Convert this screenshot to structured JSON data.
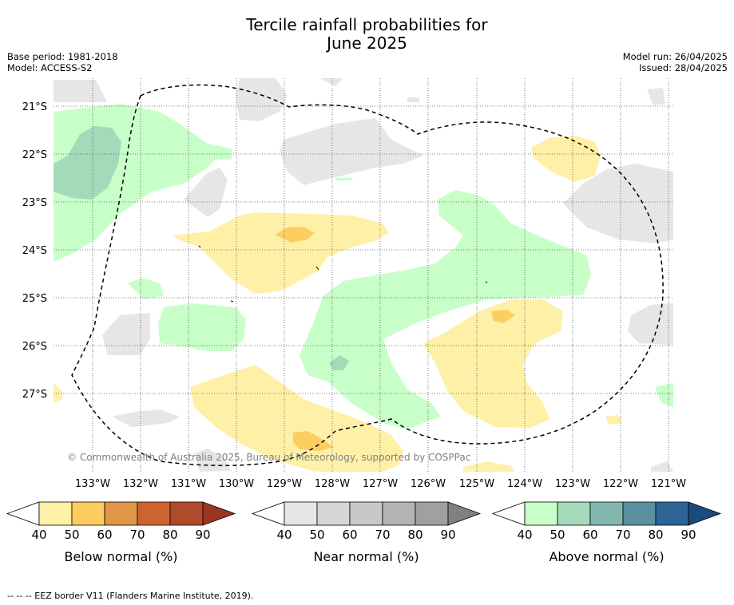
{
  "title_line1": "Tercile rainfall probabilities for",
  "title_line2": "June 2025",
  "base_period": "Base period: 1981-2018",
  "model": "Model: ACCESS-S2",
  "model_run": "Model run: 26/04/2025",
  "issued": "Issued: 28/04/2025",
  "copyright": "© Commonwealth of Australia 2025, Bureau of Meteorology, supported by COSPPac",
  "lat_labels": [
    "21°S",
    "22°S",
    "23°S",
    "24°S",
    "25°S",
    "26°S",
    "27°S"
  ],
  "lon_labels": [
    "133°W",
    "132°W",
    "131°W",
    "130°W",
    "129°W",
    "128°W",
    "127°W",
    "126°W",
    "125°W",
    "124°W",
    "123°W",
    "122°W",
    "121°W"
  ],
  "colorbars": [
    {
      "label": "Below normal (%)",
      "ticks": [
        "40",
        "50",
        "60",
        "70",
        "80",
        "90"
      ],
      "colors": [
        "#ffffff",
        "#fff0a8",
        "#fdcd62",
        "#e09646",
        "#cd6430",
        "#b04b2a",
        "#983621"
      ]
    },
    {
      "label": "Near normal (%)",
      "ticks": [
        "40",
        "50",
        "60",
        "70",
        "80",
        "90"
      ],
      "colors": [
        "#ffffff",
        "#e6e6e6",
        "#d6d6d6",
        "#c8c8c8",
        "#b4b4b4",
        "#a0a0a0",
        "#808080"
      ]
    },
    {
      "label": "Above normal (%)",
      "ticks": [
        "40",
        "50",
        "60",
        "70",
        "80",
        "90"
      ],
      "colors": [
        "#ffffff",
        "#c8ffc8",
        "#a4d9b9",
        "#82b8b0",
        "#5a91a0",
        "#2d6496",
        "#1a4b7c"
      ]
    }
  ],
  "footer": "--  --  -- EEZ border V11 (Flanders Marine Institute, 2019).",
  "colors": {
    "below_40": "#fff0a8",
    "below_50": "#fdcd62",
    "near_40": "#e6e6e6",
    "above_40": "#c8ffc8",
    "above_50": "#a4d9b9"
  }
}
